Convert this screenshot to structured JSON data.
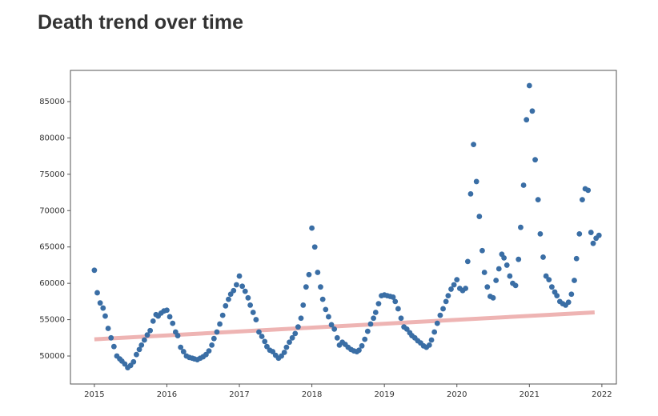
{
  "chart_data": {
    "type": "scatter",
    "title": "Death trend over time",
    "color": "#3a6ea5",
    "xlim": [
      2014.67,
      2022.2
    ],
    "ylim": [
      46150,
      89290
    ],
    "xticks": [
      2015,
      2016,
      2017,
      2018,
      2019,
      2020,
      2021,
      2022
    ],
    "yticks": [
      50000,
      55000,
      60000,
      65000,
      70000,
      75000,
      80000,
      85000
    ],
    "x": [
      2015.0,
      2015.04,
      2015.08,
      2015.12,
      2015.15,
      2015.19,
      2015.23,
      2015.27,
      2015.31,
      2015.35,
      2015.38,
      2015.42,
      2015.46,
      2015.5,
      2015.54,
      2015.58,
      2015.62,
      2015.65,
      2015.69,
      2015.73,
      2015.77,
      2015.81,
      2015.85,
      2015.88,
      2015.92,
      2015.96,
      2016.0,
      2016.04,
      2016.08,
      2016.12,
      2016.15,
      2016.19,
      2016.23,
      2016.27,
      2016.31,
      2016.35,
      2016.38,
      2016.42,
      2016.46,
      2016.5,
      2016.54,
      2016.58,
      2016.62,
      2016.65,
      2016.69,
      2016.73,
      2016.77,
      2016.81,
      2016.85,
      2016.88,
      2016.92,
      2016.96,
      2017.0,
      2017.04,
      2017.08,
      2017.12,
      2017.15,
      2017.19,
      2017.23,
      2017.27,
      2017.31,
      2017.35,
      2017.38,
      2017.42,
      2017.46,
      2017.5,
      2017.54,
      2017.58,
      2017.62,
      2017.65,
      2017.69,
      2017.73,
      2017.77,
      2017.81,
      2017.85,
      2017.88,
      2017.92,
      2017.96,
      2018.0,
      2018.04,
      2018.08,
      2018.12,
      2018.15,
      2018.19,
      2018.23,
      2018.27,
      2018.31,
      2018.35,
      2018.38,
      2018.42,
      2018.46,
      2018.5,
      2018.54,
      2018.58,
      2018.62,
      2018.65,
      2018.69,
      2018.73,
      2018.77,
      2018.81,
      2018.85,
      2018.88,
      2018.92,
      2018.96,
      2019.0,
      2019.04,
      2019.08,
      2019.12,
      2019.15,
      2019.19,
      2019.23,
      2019.27,
      2019.31,
      2019.35,
      2019.38,
      2019.42,
      2019.46,
      2019.5,
      2019.54,
      2019.58,
      2019.62,
      2019.65,
      2019.69,
      2019.73,
      2019.77,
      2019.81,
      2019.85,
      2019.88,
      2019.92,
      2019.96,
      2020.0,
      2020.04,
      2020.08,
      2020.12,
      2020.15,
      2020.19,
      2020.23,
      2020.27,
      2020.31,
      2020.35,
      2020.38,
      2020.42,
      2020.46,
      2020.5,
      2020.54,
      2020.58,
      2020.62,
      2020.65,
      2020.69,
      2020.73,
      2020.77,
      2020.81,
      2020.85,
      2020.88,
      2020.92,
      2020.96,
      2021.0,
      2021.04,
      2021.08,
      2021.12,
      2021.15,
      2021.19,
      2021.23,
      2021.27,
      2021.31,
      2021.35,
      2021.38,
      2021.42,
      2021.46,
      2021.5,
      2021.54,
      2021.58,
      2021.62,
      2021.65,
      2021.69,
      2021.73,
      2021.77,
      2021.81,
      2021.85,
      2021.88,
      2021.92,
      2021.96
    ],
    "values": [
      61800,
      58700,
      57300,
      56600,
      55500,
      53800,
      52500,
      51300,
      50000,
      49600,
      49300,
      48900,
      48400,
      48700,
      49200,
      50200,
      50900,
      51500,
      52200,
      52900,
      53500,
      54800,
      55700,
      55500,
      55900,
      56200,
      56300,
      55400,
      54500,
      53300,
      52800,
      51200,
      50600,
      50000,
      49800,
      49700,
      49600,
      49500,
      49700,
      49900,
      50200,
      50700,
      51500,
      52400,
      53300,
      54400,
      55600,
      56900,
      57800,
      58500,
      59000,
      59800,
      61000,
      59600,
      58900,
      58000,
      57000,
      56000,
      55000,
      53300,
      52700,
      52000,
      51300,
      50800,
      50600,
      50100,
      49700,
      50000,
      50500,
      51200,
      51900,
      52500,
      53100,
      54000,
      55200,
      57000,
      59500,
      61200,
      67600,
      65000,
      61500,
      59500,
      57800,
      56400,
      55400,
      54300,
      53700,
      52500,
      51500,
      51900,
      51600,
      51200,
      50900,
      50700,
      50600,
      50800,
      51400,
      52300,
      53400,
      54400,
      55200,
      56000,
      57200,
      58300,
      58400,
      58300,
      58200,
      58100,
      57500,
      56500,
      55200,
      54000,
      53700,
      53200,
      52800,
      52500,
      52100,
      51800,
      51400,
      51200,
      51500,
      52200,
      53300,
      54500,
      55600,
      56500,
      57500,
      58300,
      59200,
      59800,
      60500,
      59300,
      59000,
      59300,
      63000,
      72300,
      79100,
      74000,
      69200,
      64500,
      61500,
      59500,
      58200,
      58000,
      60400,
      62000,
      64000,
      63500,
      62500,
      61000,
      60000,
      59700,
      63300,
      67700,
      73500,
      82500,
      87200,
      83700,
      77000,
      71500,
      66800,
      63600,
      61000,
      60500,
      59500,
      58800,
      58300,
      57500,
      57200,
      57000,
      57400,
      58500,
      60400,
      63400,
      66800,
      71500,
      73000,
      72800,
      67000,
      65500,
      66200,
      66600
    ],
    "trend": {
      "x": [
        2015,
        2021.9
      ],
      "values": [
        52300,
        56000
      ],
      "color": "#eeb4b3"
    }
  }
}
